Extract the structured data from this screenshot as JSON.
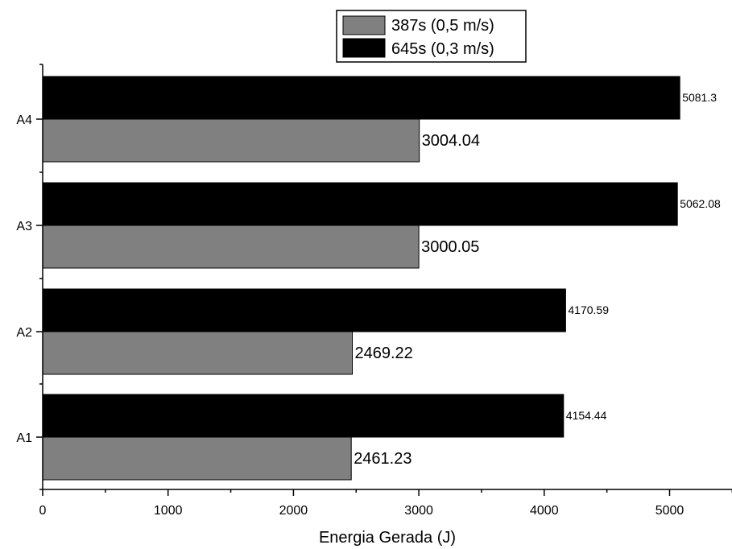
{
  "chart_data": {
    "type": "bar",
    "orientation": "horizontal",
    "categories": [
      "A1",
      "A2",
      "A3",
      "A4"
    ],
    "series": [
      {
        "name": "387s (0,5 m/s)",
        "color": "#808080",
        "values": [
          2461.23,
          2469.22,
          3000.05,
          3004.04
        ],
        "labels": [
          "2461.23",
          "2469.22",
          "3000.05",
          "3004.04"
        ]
      },
      {
        "name": "645s (0,3 m/s)",
        "color": "#000000",
        "values": [
          4154.44,
          4170.59,
          5062.08,
          5081.3
        ],
        "labels": [
          "4154.44",
          "4170.59",
          "5062.08",
          "5081.3"
        ]
      }
    ],
    "xlabel": "Energia Gerada (J)",
    "ylabel": "",
    "xlim": [
      0,
      5500
    ],
    "xticks": [
      "0",
      "1000",
      "2000",
      "3000",
      "4000",
      "5000"
    ],
    "grid": false,
    "legend_position": "top-center"
  }
}
